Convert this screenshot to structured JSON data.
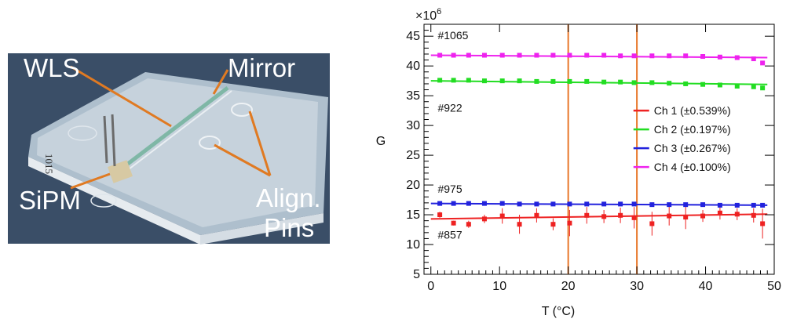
{
  "photo": {
    "labels": {
      "wls": "WLS",
      "mirror": "Mirror",
      "sipm": "SiPM",
      "align_line1": "Align.",
      "align_line2": "Pins",
      "handwritten": "1015"
    },
    "colors": {
      "background": "#3a4e67",
      "leader": "#e07a22",
      "text": "#ffffff"
    }
  },
  "chart_data": {
    "type": "scatter",
    "title": "",
    "xlabel": "T (°C)",
    "ylabel": "G",
    "y_multiplier": "×10",
    "y_multiplier_exp": "6",
    "xlim": [
      -1,
      50
    ],
    "ylim": [
      5,
      47
    ],
    "xticks": [
      0,
      10,
      20,
      30,
      40,
      50
    ],
    "yticks": [
      5,
      10,
      15,
      20,
      25,
      30,
      35,
      40,
      45
    ],
    "vlines": [
      20,
      30
    ],
    "vline_color": "#e8772a",
    "legend_position": "right-middle",
    "annotations": [
      "#1065",
      "#922",
      "#975",
      "#857"
    ],
    "series": [
      {
        "name": "Ch 1 (±0.539%)",
        "color": "#ee2222",
        "fit": [
          14.3,
          15.1
        ],
        "x": [
          1.3,
          3.3,
          5.5,
          7.8,
          10.4,
          12.9,
          15.4,
          17.8,
          20.2,
          22.7,
          25.2,
          27.6,
          29.6,
          32.2,
          34.7,
          37.1,
          39.6,
          42.1,
          44.6,
          47.0,
          48.3
        ],
        "y": [
          15.0,
          13.6,
          13.4,
          14.3,
          14.8,
          13.4,
          14.9,
          13.4,
          13.6,
          14.9,
          14.7,
          14.9,
          14.5,
          13.5,
          14.8,
          14.6,
          14.8,
          15.3,
          15.1,
          14.9,
          13.5
        ],
        "err": [
          0.5,
          0.4,
          0.6,
          0.7,
          1.3,
          1.6,
          1.2,
          1.0,
          2.2,
          1.4,
          1.1,
          1.3,
          1.8,
          2.0,
          1.6,
          2.0,
          1.0,
          1.1,
          1.0,
          1.2,
          2.5
        ]
      },
      {
        "name": "Ch 2 (±0.197%)",
        "color": "#22dd22",
        "fit": [
          37.5,
          36.9
        ],
        "x": [
          1.3,
          3.3,
          5.5,
          7.8,
          10.4,
          12.9,
          15.4,
          17.8,
          20.2,
          22.7,
          25.2,
          27.6,
          29.6,
          32.2,
          34.7,
          37.1,
          39.6,
          42.1,
          44.6,
          47.0,
          48.3
        ],
        "y": [
          37.6,
          37.6,
          37.6,
          37.5,
          37.5,
          37.5,
          37.4,
          37.4,
          37.4,
          37.4,
          37.3,
          37.3,
          37.2,
          37.2,
          37.1,
          37.0,
          36.9,
          36.8,
          36.6,
          36.5,
          36.3
        ],
        "err": []
      },
      {
        "name": "Ch 3 (±0.267%)",
        "color": "#2222dd",
        "fit": [
          16.9,
          16.6
        ],
        "x": [
          1.3,
          3.3,
          5.5,
          7.8,
          10.4,
          12.9,
          15.4,
          17.8,
          20.2,
          22.7,
          25.2,
          27.6,
          29.6,
          32.2,
          34.7,
          37.1,
          39.6,
          42.1,
          44.6,
          47.0,
          48.3
        ],
        "y": [
          16.9,
          16.9,
          16.9,
          16.9,
          16.9,
          16.8,
          16.8,
          16.8,
          16.8,
          16.8,
          16.8,
          16.8,
          16.8,
          16.7,
          16.7,
          16.7,
          16.7,
          16.6,
          16.6,
          16.6,
          16.6
        ],
        "err": []
      },
      {
        "name": "Ch 4 (±0.100%)",
        "color": "#ee22ee",
        "fit": [
          41.8,
          41.4
        ],
        "x": [
          1.3,
          3.3,
          5.5,
          7.8,
          10.4,
          12.9,
          15.4,
          17.8,
          20.2,
          22.7,
          25.2,
          27.6,
          29.6,
          32.2,
          34.7,
          37.1,
          39.6,
          42.1,
          44.6,
          47.0,
          48.3
        ],
        "y": [
          41.8,
          41.8,
          41.8,
          41.8,
          41.8,
          41.8,
          41.8,
          41.8,
          41.8,
          41.8,
          41.8,
          41.7,
          41.7,
          41.7,
          41.7,
          41.7,
          41.6,
          41.5,
          41.4,
          41.2,
          40.5
        ],
        "err": []
      }
    ]
  }
}
